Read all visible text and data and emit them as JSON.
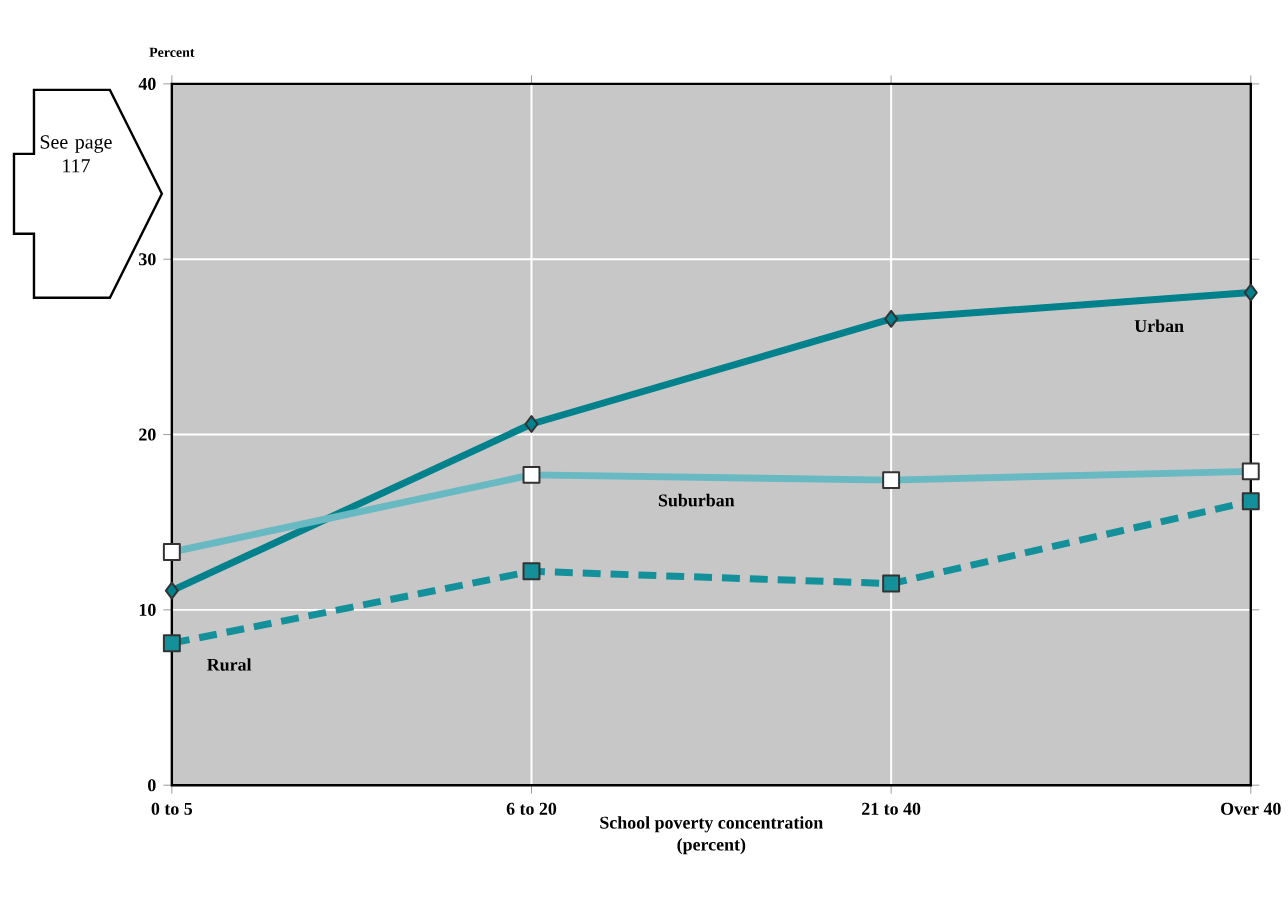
{
  "chart_data": {
    "type": "line",
    "ylabel": "Percent",
    "xlabel": "School poverty concentration\n(percent)",
    "categories": [
      "0 to 5",
      "6 to 20",
      "21 to 40",
      "Over 40"
    ],
    "series": [
      {
        "name": "Urban",
        "color": "#00818b",
        "values": [
          11.1,
          20.6,
          26.6,
          28.1
        ],
        "marker": "diamond",
        "line_style": "solid"
      },
      {
        "name": "Suburban",
        "color": "#68b9c2",
        "values": [
          13.3,
          17.7,
          17.4,
          17.9
        ],
        "marker": "square",
        "line_style": "solid"
      },
      {
        "name": "Rural",
        "color": "#13909a",
        "values": [
          8.1,
          12.2,
          11.5,
          16.2
        ],
        "marker": "square",
        "line_style": "dashed"
      }
    ],
    "ylim": [
      0,
      40
    ],
    "yticks": [
      0,
      10,
      20,
      30,
      40
    ],
    "grid": true,
    "annotations": [
      "See page 117"
    ]
  }
}
